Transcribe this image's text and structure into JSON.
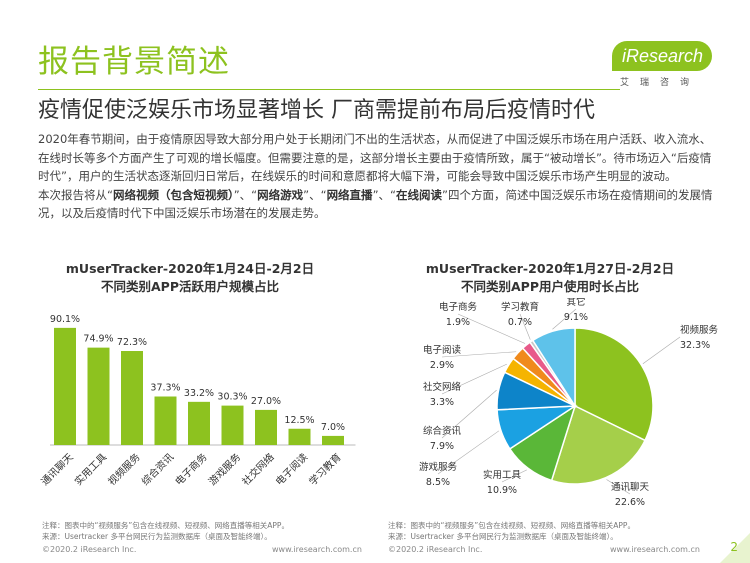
{
  "page": {
    "title": "报告背景简述",
    "subtitle": "疫情促使泛娱乐市场显著增长 厂商需提前布局后疫情时代",
    "logo_text": "iResearch",
    "logo_sub": "艾瑞咨询",
    "page_number": "2"
  },
  "intro": {
    "p1": "2020年春节期间，由于疫情原因导致大部分用户处于长期闭门不出的生活状态，从而促进了中国泛娱乐市场在用户活跃、收入流水、在线时长等多个方面产生了可观的增长幅度。但需要注意的是，这部分增长主要由于疫情所致，属于“被动增长”。待市场迈入“后疫情时代”，用户的生活状态逐渐回归日常后，在线娱乐的时间和意愿都将大幅下滑，可能会导致中国泛娱乐市场产生明显的波动。",
    "p2_prefix": "本次报告将从“",
    "p2_b1": "网络视频（包含短视频）",
    "p2_sep1": "”、“",
    "p2_b2": "网络游戏",
    "p2_sep2": "”、“",
    "p2_b3": "网络直播",
    "p2_sep3": "”、“",
    "p2_b4": "在线阅读",
    "p2_suffix": "”四个方面，简述中国泛娱乐市场在疫情期间的发展情况，以及后疫情时代下中国泛娱乐市场潜在的发展走势。"
  },
  "chart_data": [
    {
      "type": "bar",
      "title_line1": "mUserTracker-2020年1月24日-2月2日",
      "title_line2": "不同类别APP活跃用户规模占比",
      "categories": [
        "通讯聊天",
        "实用工具",
        "视频服务",
        "综合资讯",
        "电子商务",
        "游戏服务",
        "社交网络",
        "电子阅读",
        "学习教育"
      ],
      "values": [
        90.1,
        74.9,
        72.3,
        37.3,
        33.2,
        30.3,
        27.0,
        12.5,
        7.0
      ],
      "labels": [
        "90.1%",
        "74.9%",
        "72.3%",
        "37.3%",
        "33.2%",
        "30.3%",
        "27.0%",
        "12.5%",
        "7.0%"
      ],
      "color": "#8dc21f",
      "ylim": [
        0,
        100
      ],
      "grid": false
    },
    {
      "type": "pie",
      "title_line1": "mUserTracker-2020年1月27日-2月2日",
      "title_line2": "不同类别APP用户使用时长占比",
      "slices": [
        {
          "name": "视频服务",
          "value": 32.3,
          "label": "32.3%",
          "color": "#8dc21f"
        },
        {
          "name": "通讯聊天",
          "value": 22.6,
          "label": "22.6%",
          "color": "#a5cf4a"
        },
        {
          "name": "实用工具",
          "value": 10.9,
          "label": "10.9%",
          "color": "#5ab738"
        },
        {
          "name": "游戏服务",
          "value": 8.5,
          "label": "8.5%",
          "color": "#1ba1e2"
        },
        {
          "name": "综合资讯",
          "value": 7.9,
          "label": "7.9%",
          "color": "#0d84c9"
        },
        {
          "name": "社交网络",
          "value": 3.3,
          "label": "3.3%",
          "color": "#f5b400"
        },
        {
          "name": "电子阅读",
          "value": 2.9,
          "label": "2.9%",
          "color": "#f08a1c"
        },
        {
          "name": "电子商务",
          "value": 1.9,
          "label": "1.9%",
          "color": "#e85a8a"
        },
        {
          "name": "学习教育",
          "value": 0.7,
          "label": "0.7%",
          "color": "#c8c8c8"
        },
        {
          "name": "其它",
          "value": 9.1,
          "label": "9.1%",
          "color": "#5ec2ea"
        }
      ]
    }
  ],
  "notes": {
    "left_line1": "注释：图表中的“视频服务”包含在线视频、短视频、网络直播等相关APP。",
    "left_line2": "来源：Usertracker 多平台网民行为监测数据库（桌面及智能终端）。",
    "right_line1": "注释：图表中的“视频服务”包含在线视频、短视频、网络直播等相关APP。",
    "right_line2": "来源：Usertracker 多平台网民行为监测数据库（桌面及智能终端）。"
  },
  "footer": {
    "left_copyright": "©2020.2 iResearch Inc.",
    "left_url": "www.iresearch.com.cn",
    "right_copyright": "©2020.2 iResearch Inc.",
    "right_url": "www.iresearch.com.cn"
  }
}
